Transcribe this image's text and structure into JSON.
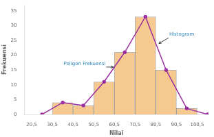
{
  "chart_data": {
    "type": "histogram",
    "xlabel": "Nilai",
    "ylabel": "Frekuensi",
    "series": [
      {
        "type": "bar",
        "color": "#F5C990",
        "bins": [
          30.5,
          40.5,
          50.5,
          60.5,
          70.5,
          80.5,
          90.5,
          100.5
        ],
        "values": [
          4,
          3,
          11,
          21,
          33,
          15,
          2
        ]
      },
      {
        "type": "line",
        "color": "#9B30A0",
        "marker": "circle",
        "line_style": "solid",
        "x": [
          25.5,
          35.5,
          45.5,
          55.5,
          65.5,
          75.5,
          85.5,
          95.5,
          105.5
        ],
        "values": [
          0,
          4,
          3,
          11,
          21,
          33,
          15,
          2,
          0
        ]
      }
    ],
    "xlim": [
      17,
      106
    ],
    "xticks": [
      {
        "value": 20.5,
        "label": "20,5"
      },
      {
        "value": 30.5,
        "label": "30,5"
      },
      {
        "value": 40.5,
        "label": "40,5"
      },
      {
        "value": 50.5,
        "label": "50,5"
      },
      {
        "value": 60.5,
        "label": "60,5"
      },
      {
        "value": 70.5,
        "label": "70,5"
      },
      {
        "value": 80.5,
        "label": "80,5"
      },
      {
        "value": 90.5,
        "label": "90,5"
      },
      {
        "value": 100.5,
        "label": "100,5"
      }
    ],
    "ylim": [
      0,
      37
    ],
    "yticks": [
      0,
      5,
      10,
      15,
      20,
      25,
      30,
      35
    ],
    "grid": false,
    "annotations": [
      {
        "text": "Poligon Frekuensi",
        "x": 36,
        "y": 17,
        "arrow_x": 60,
        "arrow_y": 16
      },
      {
        "text": "Histogram",
        "x": 87,
        "y": 27,
        "arrow_x": 82,
        "arrow_y": 24
      }
    ]
  }
}
